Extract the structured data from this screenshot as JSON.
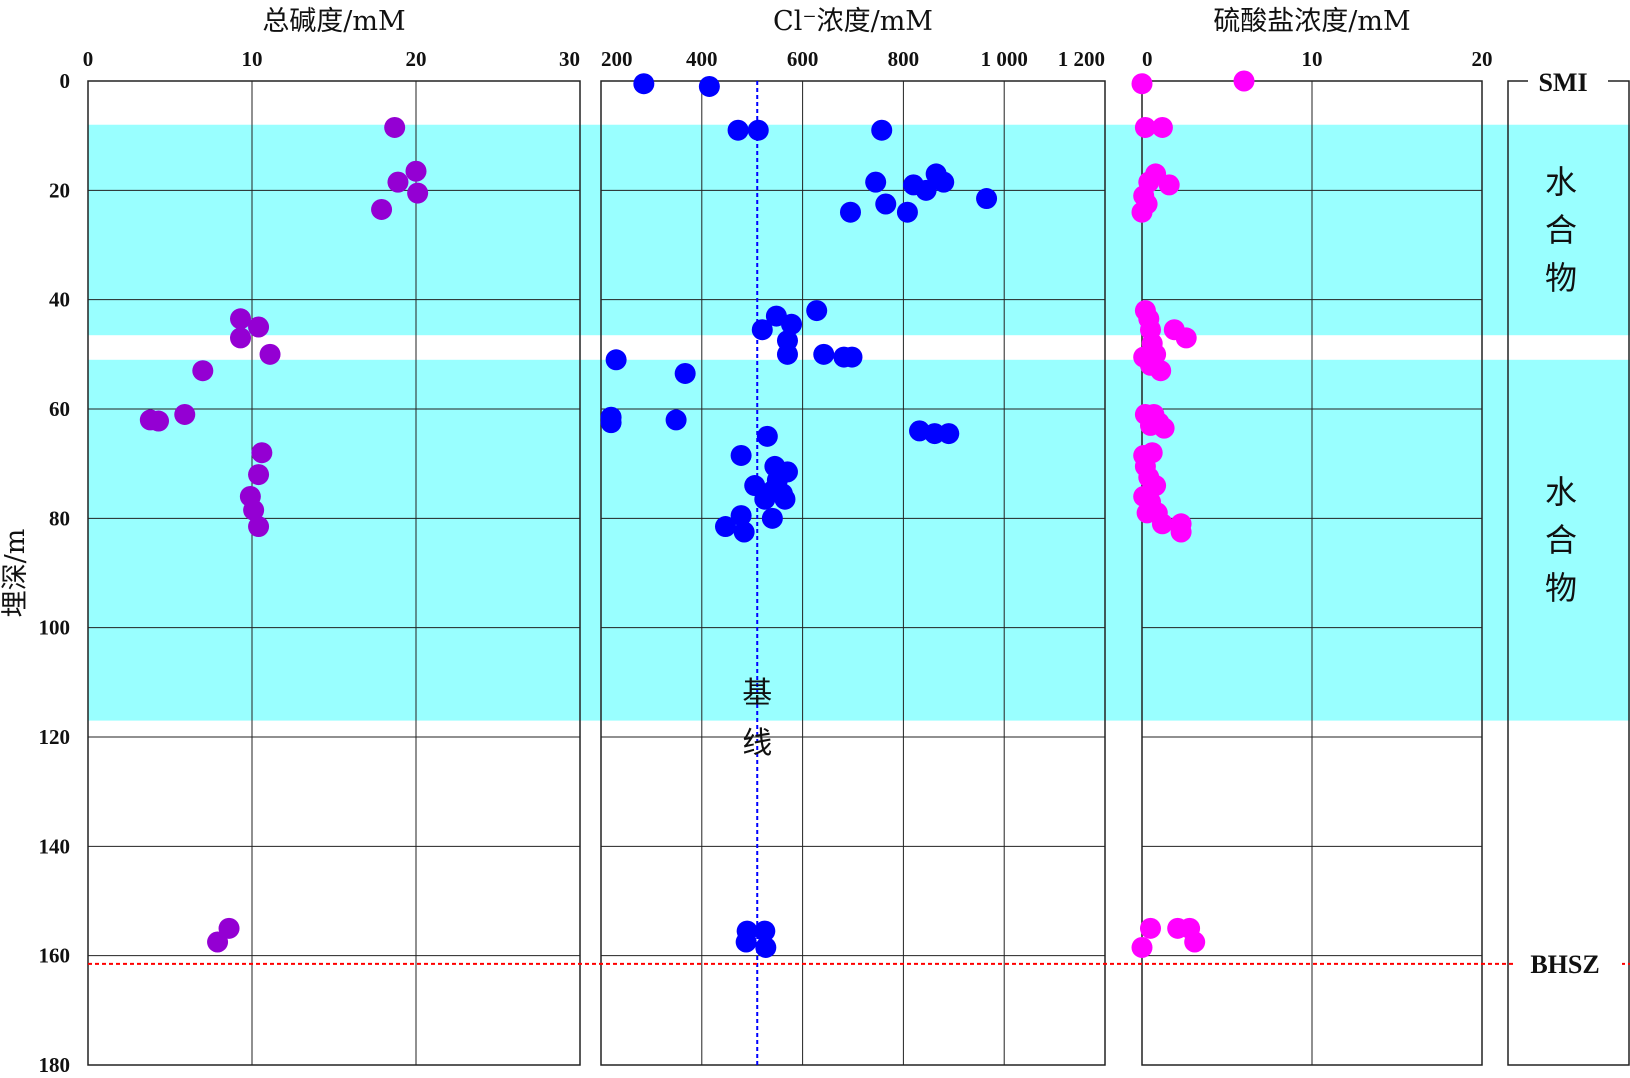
{
  "chart_data": {
    "type": "scatter",
    "y_axis": {
      "label": "埋深/m",
      "range": [
        0,
        180
      ],
      "inverted": true,
      "ticks": [
        "0",
        "20",
        "40",
        "60",
        "80",
        "100",
        "120",
        "140",
        "160",
        "180"
      ],
      "tick_values": [
        0,
        20,
        40,
        60,
        80,
        100,
        120,
        140,
        160,
        180
      ]
    },
    "hydrate_zones": [
      {
        "label": "水合物",
        "depth_range": [
          8,
          46.5
        ]
      },
      {
        "label": "水合物",
        "depth_range": [
          51,
          117
        ]
      }
    ],
    "markers": [
      {
        "label": "SMI",
        "depth": 0
      },
      {
        "label": "BHSZ",
        "depth": 161.5,
        "color": "#ff0000",
        "style": "dotted"
      }
    ],
    "panels": [
      {
        "id": "alkalinity",
        "title": "总碱度/mM",
        "xlim": [
          0,
          30
        ],
        "x_ticks": [
          "0",
          "10",
          "20",
          "30"
        ],
        "x_tick_values": [
          0,
          10,
          20,
          30
        ],
        "x_grid": [
          10,
          20
        ],
        "color": "#9400d3",
        "points": [
          [
            18.7,
            8.5
          ],
          [
            20.0,
            16.5
          ],
          [
            18.9,
            18.5
          ],
          [
            20.1,
            20.5
          ],
          [
            17.9,
            23.5
          ],
          [
            9.3,
            43.5
          ],
          [
            10.4,
            45.0
          ],
          [
            9.3,
            47.0
          ],
          [
            11.1,
            50.0
          ],
          [
            7.0,
            53.0
          ],
          [
            3.8,
            62.0
          ],
          [
            4.3,
            62.2
          ],
          [
            5.9,
            61.0
          ],
          [
            10.6,
            68.0
          ],
          [
            10.4,
            72.0
          ],
          [
            9.9,
            76.0
          ],
          [
            10.1,
            78.5
          ],
          [
            10.4,
            81.5
          ],
          [
            8.6,
            155.0
          ],
          [
            7.9,
            157.5
          ]
        ]
      },
      {
        "id": "chloride",
        "title": "Cl⁻浓度/mM",
        "xlim": [
          200,
          1200
        ],
        "x_ticks": [
          "200",
          "400",
          "600",
          "800",
          "1 000",
          "1 200"
        ],
        "x_tick_values": [
          200,
          400,
          600,
          800,
          1000,
          1200
        ],
        "x_grid": [
          400,
          600,
          800,
          1000
        ],
        "color": "#0000ff",
        "baseline": {
          "label": "基线",
          "value": 510,
          "color": "#0000ff",
          "style": "dotted"
        },
        "points": [
          [
            285,
            0.5
          ],
          [
            415,
            1.0
          ],
          [
            472,
            9.0
          ],
          [
            512,
            9.0
          ],
          [
            757,
            9.0
          ],
          [
            745,
            18.5
          ],
          [
            865,
            17.0
          ],
          [
            880,
            18.5
          ],
          [
            820,
            19.0
          ],
          [
            845,
            20.0
          ],
          [
            965,
            21.5
          ],
          [
            765,
            22.5
          ],
          [
            695,
            24.0
          ],
          [
            808,
            24.0
          ],
          [
            628,
            42.0
          ],
          [
            548,
            43.0
          ],
          [
            578,
            44.5
          ],
          [
            520,
            45.5
          ],
          [
            570,
            47.5
          ],
          [
            570,
            50.0
          ],
          [
            642,
            50.0
          ],
          [
            682,
            50.5
          ],
          [
            698,
            50.5
          ],
          [
            230,
            51.0
          ],
          [
            367,
            53.5
          ],
          [
            220,
            61.5
          ],
          [
            220,
            62.5
          ],
          [
            349,
            62.0
          ],
          [
            832,
            64.0
          ],
          [
            862,
            64.5
          ],
          [
            890,
            64.5
          ],
          [
            530,
            65.0
          ],
          [
            478,
            68.5
          ],
          [
            545,
            70.5
          ],
          [
            570,
            71.5
          ],
          [
            550,
            73.0
          ],
          [
            505,
            74.0
          ],
          [
            540,
            75.0
          ],
          [
            560,
            75.5
          ],
          [
            525,
            76.5
          ],
          [
            565,
            76.5
          ],
          [
            478,
            79.5
          ],
          [
            540,
            80.0
          ],
          [
            447,
            81.5
          ],
          [
            484,
            82.5
          ],
          [
            490,
            155.5
          ],
          [
            525,
            155.5
          ],
          [
            488,
            157.5
          ],
          [
            527,
            158.5
          ]
        ]
      },
      {
        "id": "sulfate",
        "title": "硫酸盐浓度/mM",
        "xlim": [
          0,
          20
        ],
        "x_ticks": [
          "0",
          "10",
          "20"
        ],
        "x_tick_values": [
          0,
          10,
          20
        ],
        "x_grid": [
          10
        ],
        "color": "#ff00ff",
        "points": [
          [
            0.0,
            0.5
          ],
          [
            6.0,
            0.0
          ],
          [
            0.2,
            8.5
          ],
          [
            1.2,
            8.5
          ],
          [
            0.4,
            18.5
          ],
          [
            0.8,
            17.0
          ],
          [
            1.6,
            19.0
          ],
          [
            0.1,
            21.0
          ],
          [
            0.3,
            22.5
          ],
          [
            0.0,
            24.0
          ],
          [
            0.2,
            42.0
          ],
          [
            0.4,
            43.5
          ],
          [
            0.5,
            45.5
          ],
          [
            1.9,
            45.5
          ],
          [
            2.6,
            47.0
          ],
          [
            0.6,
            48.0
          ],
          [
            0.8,
            50.0
          ],
          [
            0.1,
            50.5
          ],
          [
            1.1,
            53.0
          ],
          [
            0.5,
            52.0
          ],
          [
            0.2,
            61.0
          ],
          [
            0.7,
            61.0
          ],
          [
            0.5,
            63.0
          ],
          [
            1.0,
            62.5
          ],
          [
            1.3,
            63.5
          ],
          [
            0.1,
            68.5
          ],
          [
            0.6,
            68.0
          ],
          [
            0.2,
            70.5
          ],
          [
            0.4,
            72.5
          ],
          [
            0.8,
            74.0
          ],
          [
            0.1,
            76.0
          ],
          [
            0.5,
            77.0
          ],
          [
            0.3,
            79.0
          ],
          [
            0.9,
            79.0
          ],
          [
            1.2,
            81.0
          ],
          [
            2.3,
            81.0
          ],
          [
            2.3,
            82.5
          ],
          [
            0.5,
            155.0
          ],
          [
            2.1,
            155.0
          ],
          [
            2.8,
            155.0
          ],
          [
            3.1,
            157.5
          ],
          [
            0.0,
            158.5
          ]
        ]
      }
    ]
  }
}
